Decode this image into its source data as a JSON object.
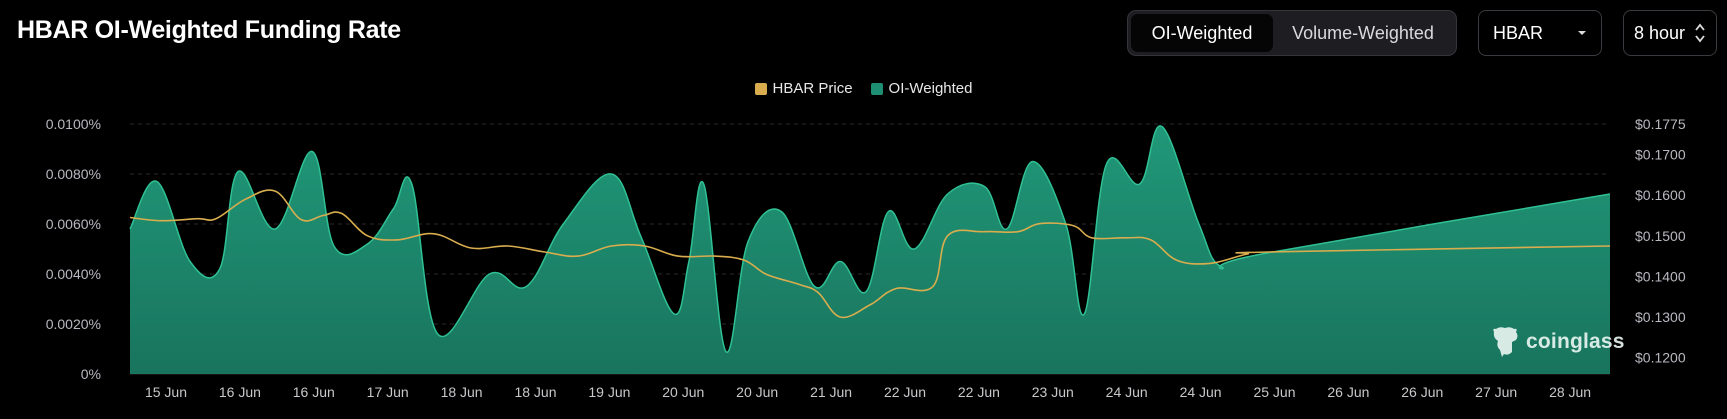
{
  "header": {
    "title": "HBAR OI-Weighted Funding Rate"
  },
  "controls": {
    "weighting_tabs": [
      {
        "label": "OI-Weighted",
        "active": true
      },
      {
        "label": "Volume-Weighted",
        "active": false
      }
    ],
    "coin_select": {
      "value": "HBAR"
    },
    "interval_select": {
      "value": "8 hour"
    }
  },
  "watermark": {
    "text": "coinglass"
  },
  "colors": {
    "price_line": "#d9ad4e",
    "funding_fill": "#1e8f73",
    "funding_stroke": "#2fc194",
    "grid": "#2a2a2e"
  },
  "chart_data": {
    "type": "area",
    "legend": [
      "HBAR Price",
      "OI-Weighted"
    ],
    "legend_position": "top-center",
    "x_tick_labels": [
      "15 Jun",
      "16 Jun",
      "16 Jun",
      "17 Jun",
      "18 Jun",
      "18 Jun",
      "19 Jun",
      "20 Jun",
      "20 Jun",
      "21 Jun",
      "22 Jun",
      "22 Jun",
      "23 Jun",
      "24 Jun",
      "24 Jun",
      "25 Jun",
      "26 Jun",
      "26 Jun",
      "27 Jun",
      "28 Jun"
    ],
    "y_left": {
      "ticks": [
        "0%",
        "0.0020%",
        "0.0040%",
        "0.0060%",
        "0.0080%",
        "0.0100%"
      ],
      "range": [
        0,
        0.01
      ]
    },
    "y_right": {
      "ticks": [
        "$0.1200",
        "$0.1300",
        "$0.1400",
        "$0.1500",
        "$0.1600",
        "$0.1700",
        "$0.1775"
      ],
      "range": [
        0.116,
        0.1775
      ]
    },
    "grid": true,
    "series": [
      {
        "name": "OI-Weighted",
        "axis": "left",
        "points": [
          [
            0,
            0.0058
          ],
          [
            0.35,
            0.0077
          ],
          [
            0.8,
            0.0045
          ],
          [
            1.2,
            0.0042
          ],
          [
            1.45,
            0.0081
          ],
          [
            1.95,
            0.0058
          ],
          [
            2.45,
            0.0089
          ],
          [
            2.75,
            0.0051
          ],
          [
            3.2,
            0.0052
          ],
          [
            3.55,
            0.0066
          ],
          [
            3.8,
            0.0076
          ],
          [
            4.15,
            0.0016
          ],
          [
            4.85,
            0.004
          ],
          [
            5.35,
            0.0035
          ],
          [
            5.85,
            0.006
          ],
          [
            6.5,
            0.008
          ],
          [
            6.9,
            0.0055
          ],
          [
            7.35,
            0.0024
          ],
          [
            7.55,
            0.0045
          ],
          [
            7.75,
            0.0076
          ],
          [
            8.05,
            0.0009
          ],
          [
            8.35,
            0.0053
          ],
          [
            8.8,
            0.0065
          ],
          [
            9.25,
            0.0035
          ],
          [
            9.6,
            0.0045
          ],
          [
            9.95,
            0.0033
          ],
          [
            10.25,
            0.0065
          ],
          [
            10.6,
            0.005
          ],
          [
            11.05,
            0.0072
          ],
          [
            11.55,
            0.0075
          ],
          [
            11.85,
            0.0058
          ],
          [
            12.2,
            0.0085
          ],
          [
            12.65,
            0.006
          ],
          [
            12.9,
            0.0024
          ],
          [
            13.2,
            0.0084
          ],
          [
            13.65,
            0.0076
          ],
          [
            13.95,
            0.0099
          ],
          [
            14.45,
            0.006
          ],
          [
            14.75,
            0.0043
          ],
          [
            15.3,
            0.0048
          ],
          [
            15.7,
            0.0072
          ]
        ]
      },
      {
        "name": "HBAR Price",
        "axis": "right",
        "points": [
          [
            0,
            0.1545
          ],
          [
            0.4,
            0.1537
          ],
          [
            0.9,
            0.1542
          ],
          [
            1.15,
            0.1542
          ],
          [
            1.55,
            0.159
          ],
          [
            1.95,
            0.161
          ],
          [
            2.3,
            0.154
          ],
          [
            2.6,
            0.155
          ],
          [
            2.85,
            0.1555
          ],
          [
            3.2,
            0.15
          ],
          [
            3.6,
            0.149
          ],
          [
            4.1,
            0.1505
          ],
          [
            4.6,
            0.147
          ],
          [
            5.1,
            0.1475
          ],
          [
            5.6,
            0.146
          ],
          [
            6.05,
            0.145
          ],
          [
            6.5,
            0.1475
          ],
          [
            6.95,
            0.1475
          ],
          [
            7.4,
            0.145
          ],
          [
            7.9,
            0.145
          ],
          [
            8.3,
            0.144
          ],
          [
            8.6,
            0.1405
          ],
          [
            9.05,
            0.138
          ],
          [
            9.3,
            0.136
          ],
          [
            9.6,
            0.13
          ],
          [
            10.0,
            0.133
          ],
          [
            10.35,
            0.137
          ],
          [
            10.85,
            0.1375
          ],
          [
            11.05,
            0.15
          ],
          [
            11.55,
            0.151
          ],
          [
            12.0,
            0.151
          ],
          [
            12.3,
            0.153
          ],
          [
            12.75,
            0.1525
          ],
          [
            13.0,
            0.1495
          ],
          [
            13.45,
            0.1495
          ],
          [
            13.8,
            0.149
          ],
          [
            14.15,
            0.144
          ],
          [
            14.6,
            0.1432
          ],
          [
            15.1,
            0.1455
          ],
          [
            15.4,
            0.146
          ],
          [
            15.7,
            0.1475
          ]
        ]
      }
    ]
  }
}
